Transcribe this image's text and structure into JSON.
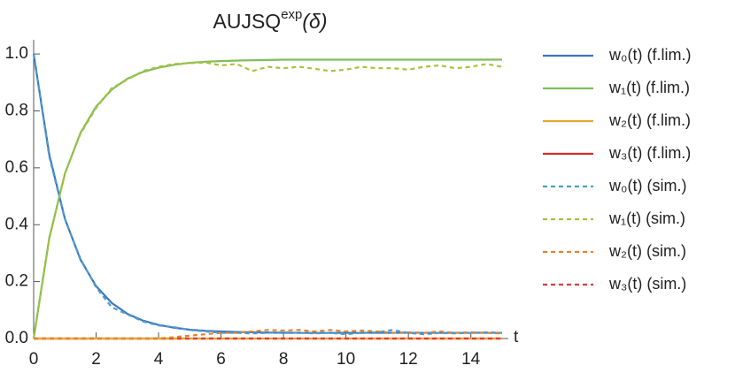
{
  "chart_data": {
    "type": "line",
    "title": "AUJSQ",
    "title_superscript": "exp",
    "title_suffix": "(δ)",
    "x_label": "t",
    "x": [
      0,
      0.5,
      1,
      1.5,
      2,
      2.5,
      3,
      3.5,
      4,
      4.5,
      5,
      5.5,
      6,
      6.5,
      7,
      7.5,
      8,
      8.5,
      9,
      9.5,
      10,
      10.5,
      11,
      11.5,
      12,
      12.5,
      13,
      13.5,
      14,
      14.5,
      15
    ],
    "xlim": [
      0,
      15.2
    ],
    "xticks": [
      0,
      2,
      4,
      6,
      8,
      10,
      12,
      14
    ],
    "ylim": [
      0,
      1.05
    ],
    "yticks": [
      {
        "value": 0,
        "label": "0.0"
      },
      0.2,
      0.4,
      0.6,
      0.8,
      {
        "value": 1,
        "label": "1.0"
      }
    ],
    "series": [
      {
        "name": "w₀(t) (f.lim.)",
        "color": "#3f74c4",
        "dashed": false,
        "values": [
          1.0,
          0.647,
          0.421,
          0.277,
          0.184,
          0.125,
          0.087,
          0.063,
          0.048,
          0.038,
          0.031,
          0.027,
          0.025,
          0.023,
          0.022,
          0.021,
          0.02,
          0.02,
          0.02,
          0.02,
          0.02,
          0.02,
          0.02,
          0.02,
          0.02,
          0.02,
          0.02,
          0.02,
          0.02,
          0.02,
          0.02
        ]
      },
      {
        "name": "w₁(t) (f.lim.)",
        "color": "#7fbd5a",
        "dashed": false,
        "values": [
          0,
          0.353,
          0.579,
          0.723,
          0.815,
          0.875,
          0.913,
          0.937,
          0.952,
          0.962,
          0.969,
          0.973,
          0.975,
          0.977,
          0.978,
          0.979,
          0.98,
          0.98,
          0.98,
          0.98,
          0.98,
          0.98,
          0.98,
          0.98,
          0.98,
          0.98,
          0.98,
          0.98,
          0.98,
          0.98,
          0.98
        ]
      },
      {
        "name": "w₂(t) (f.lim.)",
        "color": "#e8a92a",
        "dashed": false,
        "values": [
          0,
          0,
          0,
          0,
          0,
          0,
          0,
          0,
          0,
          0,
          0,
          0,
          0,
          0,
          0,
          0,
          0,
          0,
          0,
          0,
          0,
          0,
          0,
          0,
          0,
          0,
          0,
          0,
          0,
          0,
          0
        ]
      },
      {
        "name": "w₃(t) (f.lim.)",
        "color": "#d62b2b",
        "dashed": false,
        "values": [
          0,
          0,
          0,
          0,
          0,
          0,
          0,
          0,
          0,
          0,
          0,
          0,
          0,
          0,
          0,
          0,
          0,
          0,
          0,
          0,
          0,
          0,
          0,
          0,
          0,
          0,
          0,
          0,
          0,
          0,
          0
        ]
      },
      {
        "name": "w₀(t) (sim.)",
        "color": "#4a9fc7",
        "dashed": true,
        "values": [
          1.0,
          0.64,
          0.42,
          0.28,
          0.18,
          0.11,
          0.085,
          0.06,
          0.046,
          0.04,
          0.03,
          0.025,
          0.02,
          0.02,
          0.018,
          0.02,
          0.022,
          0.02,
          0.018,
          0.02,
          0.015,
          0.02,
          0.022,
          0.03,
          0.02,
          0.015,
          0.02,
          0.018,
          0.02,
          0.022,
          0.02
        ]
      },
      {
        "name": "w₁(t) (sim.)",
        "color": "#a8c23c",
        "dashed": true,
        "values": [
          0,
          0.35,
          0.58,
          0.72,
          0.81,
          0.88,
          0.91,
          0.94,
          0.955,
          0.965,
          0.968,
          0.97,
          0.96,
          0.965,
          0.94,
          0.955,
          0.95,
          0.955,
          0.948,
          0.94,
          0.945,
          0.955,
          0.95,
          0.95,
          0.945,
          0.955,
          0.96,
          0.95,
          0.955,
          0.965,
          0.955
        ]
      },
      {
        "name": "w₂(t) (sim.)",
        "color": "#e8822a",
        "dashed": true,
        "values": [
          0,
          0,
          0,
          0,
          0,
          0,
          0,
          0,
          0,
          0.005,
          0.01,
          0.015,
          0.02,
          0.02,
          0.025,
          0.03,
          0.028,
          0.03,
          0.025,
          0.03,
          0.025,
          0.028,
          0.025,
          0.02,
          0.022,
          0.02,
          0.025,
          0.02,
          0.022,
          0.02,
          0.018
        ]
      },
      {
        "name": "w₃(t) (sim.)",
        "color": "#e03a3a",
        "dashed": true,
        "values": [
          0,
          0,
          0,
          0,
          0,
          0,
          0,
          0,
          0,
          0,
          0,
          0,
          0,
          0,
          0,
          0,
          0,
          0,
          0,
          0,
          0,
          0,
          0,
          0,
          0,
          0,
          0,
          0,
          0,
          0,
          0
        ]
      }
    ]
  }
}
